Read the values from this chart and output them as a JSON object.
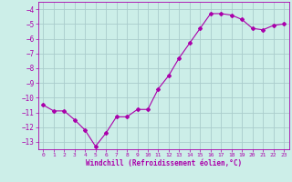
{
  "x": [
    0,
    1,
    2,
    3,
    4,
    5,
    6,
    7,
    8,
    9,
    10,
    11,
    12,
    13,
    14,
    15,
    16,
    17,
    18,
    19,
    20,
    21,
    22,
    23
  ],
  "y": [
    -10.5,
    -10.9,
    -10.9,
    -11.5,
    -12.2,
    -13.3,
    -12.4,
    -11.3,
    -11.3,
    -10.8,
    -10.8,
    -9.4,
    -8.5,
    -7.3,
    -6.3,
    -5.3,
    -4.3,
    -4.3,
    -4.4,
    -4.7,
    -5.3,
    -5.4,
    -5.1,
    -5.0
  ],
  "line_color": "#aa00aa",
  "marker": "D",
  "marker_size": 2,
  "bg_color": "#cceee8",
  "grid_color": "#aacccc",
  "tick_color": "#aa00aa",
  "label_color": "#aa00aa",
  "xlabel": "Windchill (Refroidissement éolien,°C)",
  "ylim": [
    -13.5,
    -3.5
  ],
  "yticks": [
    -13,
    -12,
    -11,
    -10,
    -9,
    -8,
    -7,
    -6,
    -5,
    -4
  ],
  "xticks": [
    0,
    1,
    2,
    3,
    4,
    5,
    6,
    7,
    8,
    9,
    10,
    11,
    12,
    13,
    14,
    15,
    16,
    17,
    18,
    19,
    20,
    21,
    22,
    23
  ],
  "xlim": [
    -0.5,
    23.5
  ]
}
